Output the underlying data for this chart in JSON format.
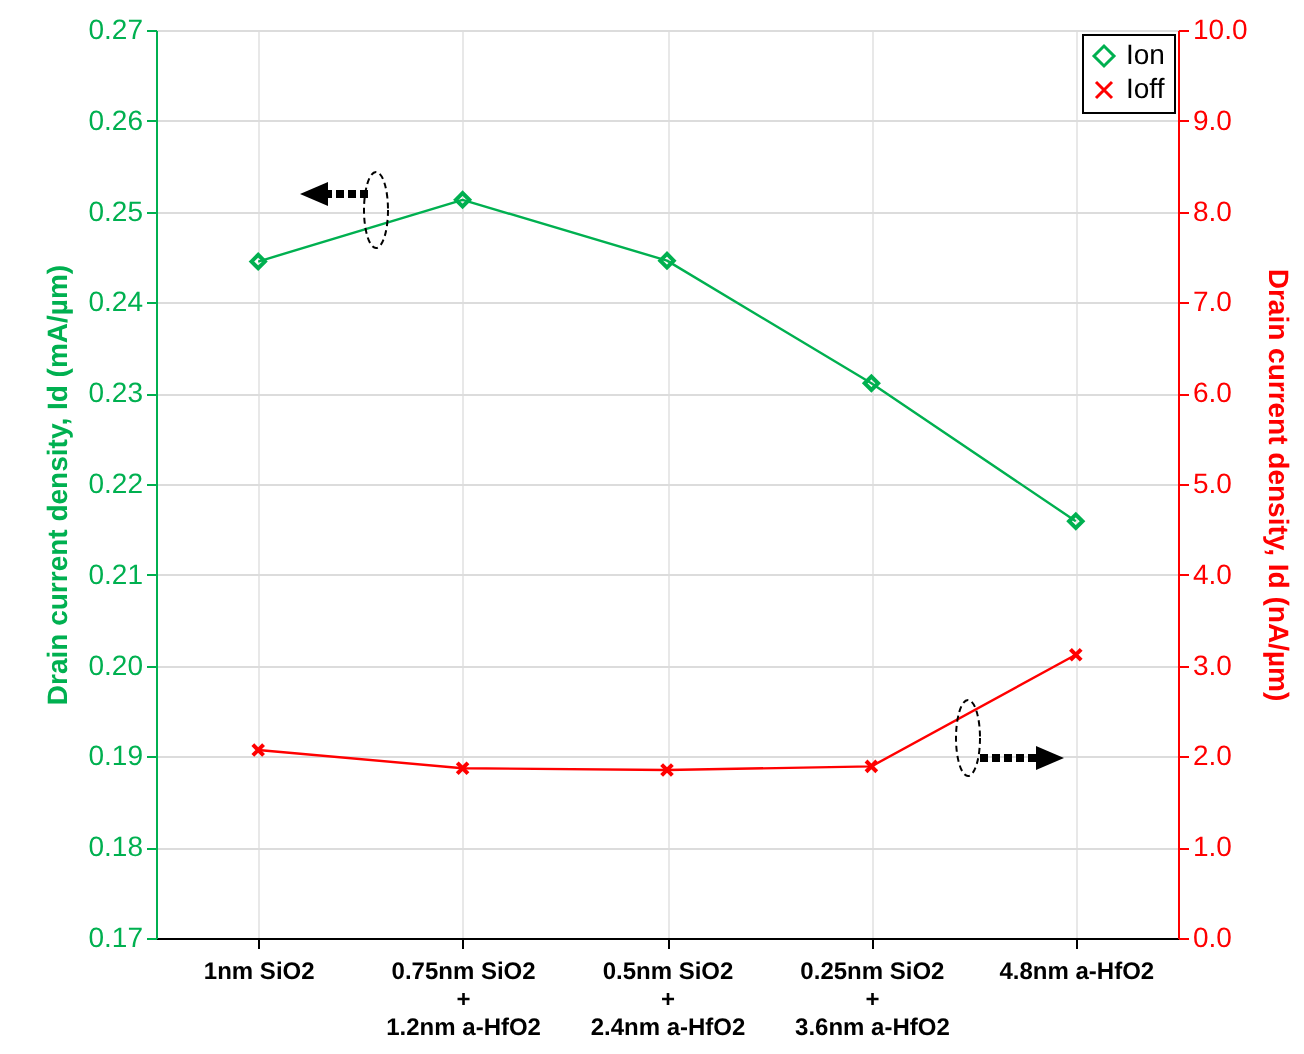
{
  "chart_data": {
    "type": "line",
    "ylabel": "Drain current density, Id (mA/µm)",
    "y2label": "Drain current density, Id (nA/µm)",
    "categories": [
      "1nm SiO2",
      "0.75nm SiO2\n+\n1.2nm a-HfO2",
      "0.5nm SiO2\n+\n2.4nm a-HfO2",
      "0.25nm SiO2\n+\n3.6nm a-HfO2",
      "4.8nm a-HfO2"
    ],
    "series": [
      {
        "name": "Ion",
        "color": "#00b050",
        "marker": "diamond",
        "values": [
          0.2445,
          0.2513,
          0.2446,
          0.2311,
          0.2159
        ]
      },
      {
        "name": "Ioff",
        "color": "#ff0000",
        "marker": "cross",
        "axis": "y2",
        "values": [
          2.07,
          1.87,
          1.85,
          1.89,
          3.12
        ]
      }
    ],
    "ylim": [
      0.17,
      0.27
    ],
    "yticks": [
      0.17,
      0.18,
      0.19,
      {
        "value": 0.2,
        "label": "0.20"
      },
      0.21,
      0.22,
      0.23,
      0.24,
      0.25,
      0.26,
      0.27
    ],
    "y2lim": [
      0,
      10
    ],
    "y2ticks": [
      {
        "value": 0,
        "label": "0.0"
      },
      {
        "value": 1,
        "label": "1.0"
      },
      {
        "value": 2,
        "label": "2.0"
      },
      {
        "value": 3,
        "label": "3.0"
      },
      {
        "value": 4,
        "label": "4.0"
      },
      {
        "value": 5,
        "label": "5.0"
      },
      {
        "value": 6,
        "label": "6.0"
      },
      {
        "value": 7,
        "label": "7.0"
      },
      {
        "value": 8,
        "label": "8.0"
      },
      {
        "value": 9,
        "label": "9.0"
      },
      {
        "value": 10,
        "label": "10.0"
      }
    ],
    "grid": true,
    "legend": "top right",
    "line_style": "solid"
  }
}
